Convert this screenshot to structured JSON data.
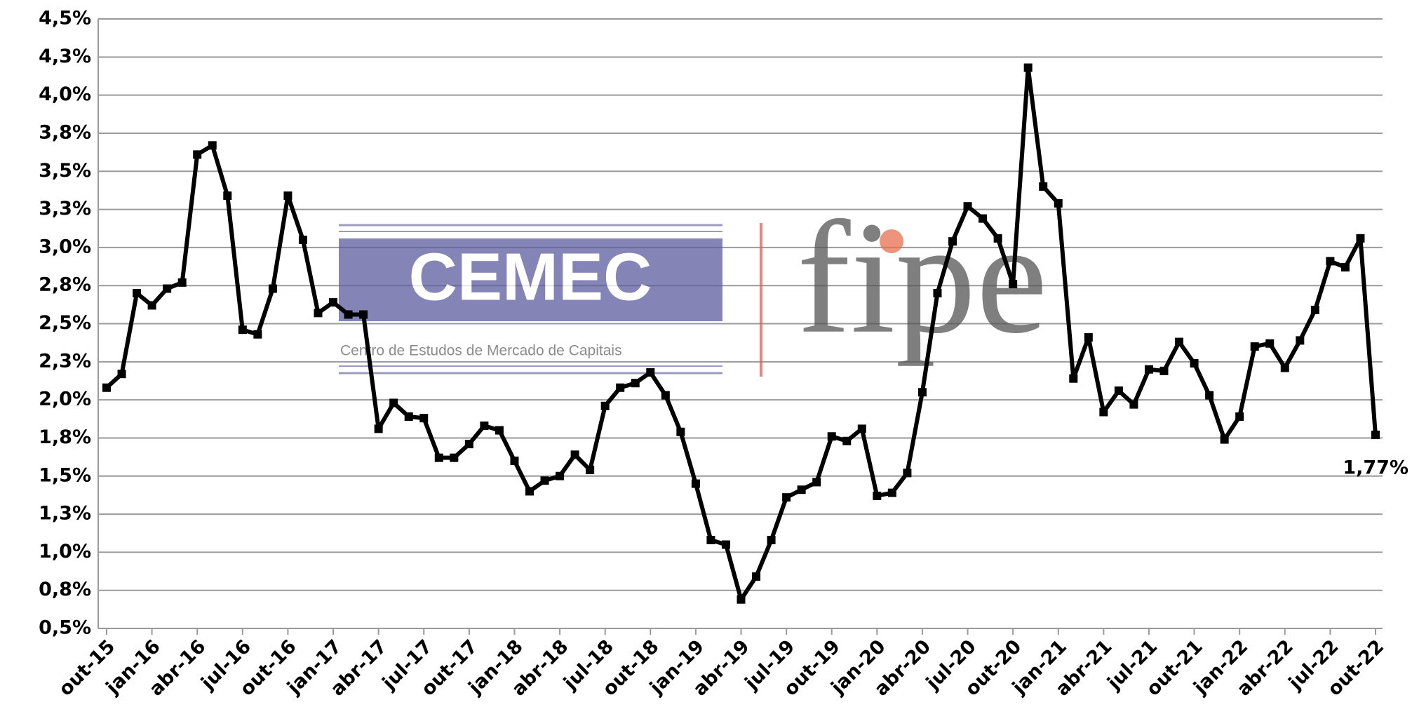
{
  "chart_data": {
    "type": "line",
    "color": "#000000",
    "grid": true,
    "categories": [
      "out-15",
      null,
      null,
      "jan-16",
      null,
      null,
      "abr-16",
      null,
      null,
      "jul-16",
      null,
      null,
      "out-16",
      null,
      null,
      "jan-17",
      null,
      null,
      "abr-17",
      null,
      null,
      "jul-17",
      null,
      null,
      "out-17",
      null,
      null,
      "jan-18",
      null,
      null,
      "abr-18",
      null,
      null,
      "jul-18",
      null,
      null,
      "out-18",
      null,
      null,
      "jan-19",
      null,
      null,
      "abr-19",
      null,
      null,
      "jul-19",
      null,
      null,
      "out-19",
      null,
      null,
      "jan-20",
      null,
      null,
      "abr-20",
      null,
      null,
      "jul-20",
      null,
      null,
      "out-20",
      null,
      null,
      "jan-21",
      null,
      null,
      "abr-21",
      null,
      null,
      "jul-21",
      null,
      null,
      "out-21",
      null,
      null,
      "jan-22",
      null,
      null,
      "abr-22",
      null,
      null,
      "jul-22",
      null,
      null,
      "out-22"
    ],
    "values": [
      2.08,
      2.17,
      2.7,
      2.62,
      2.73,
      2.77,
      3.61,
      3.67,
      3.34,
      2.46,
      2.43,
      2.73,
      3.34,
      3.05,
      2.57,
      2.64,
      2.56,
      2.56,
      1.81,
      1.98,
      1.89,
      1.88,
      1.62,
      1.62,
      1.71,
      1.83,
      1.8,
      1.6,
      1.4,
      1.47,
      1.5,
      1.64,
      1.54,
      1.96,
      2.08,
      2.11,
      2.18,
      2.03,
      1.79,
      1.45,
      1.08,
      1.05,
      0.69,
      0.84,
      1.08,
      1.36,
      1.41,
      1.46,
      1.76,
      1.73,
      1.81,
      1.37,
      1.39,
      1.52,
      2.05,
      2.7,
      3.04,
      3.27,
      3.19,
      3.06,
      2.76,
      4.18,
      3.4,
      3.29,
      2.14,
      2.41,
      1.92,
      2.06,
      1.97,
      2.2,
      2.19,
      2.38,
      2.24,
      2.03,
      1.74,
      1.89,
      2.35,
      2.37,
      2.21,
      2.39,
      2.59,
      2.91,
      2.87,
      3.06,
      1.77
    ],
    "value_labels": [
      null,
      null,
      null,
      null,
      null,
      null,
      null,
      null,
      null,
      null,
      null,
      null,
      null,
      null,
      null,
      null,
      null,
      null,
      null,
      null,
      null,
      null,
      null,
      null,
      null,
      null,
      null,
      null,
      null,
      null,
      null,
      null,
      null,
      null,
      null,
      null,
      null,
      null,
      null,
      null,
      null,
      null,
      null,
      null,
      null,
      null,
      null,
      null,
      null,
      null,
      null,
      null,
      null,
      null,
      null,
      null,
      null,
      null,
      null,
      null,
      null,
      null,
      null,
      null,
      null,
      null,
      null,
      null,
      null,
      null,
      null,
      null,
      null,
      null,
      null,
      null,
      null,
      null,
      null,
      null,
      null,
      null,
      null,
      null,
      "1,77%"
    ],
    "ylim": [
      0.5,
      4.5
    ],
    "yticks": [
      {
        "value": 0.5,
        "label": "0,5%"
      },
      {
        "value": 0.75,
        "label": "0,8%"
      },
      {
        "value": 1.0,
        "label": "1,0%"
      },
      {
        "value": 1.25,
        "label": "1,3%"
      },
      {
        "value": 1.5,
        "label": "1,5%"
      },
      {
        "value": 1.75,
        "label": "1,8%"
      },
      {
        "value": 2.0,
        "label": "2,0%"
      },
      {
        "value": 2.25,
        "label": "2,3%"
      },
      {
        "value": 2.5,
        "label": "2,5%"
      },
      {
        "value": 2.75,
        "label": "2,8%"
      },
      {
        "value": 3.0,
        "label": "3,0%"
      },
      {
        "value": 3.25,
        "label": "3,3%"
      },
      {
        "value": 3.5,
        "label": "3,5%"
      },
      {
        "value": 3.75,
        "label": "3,8%"
      },
      {
        "value": 4.0,
        "label": "4,0%"
      },
      {
        "value": 4.25,
        "label": "4,3%"
      },
      {
        "value": 4.5,
        "label": "4,5%"
      }
    ]
  },
  "logo": {
    "name": "CEMEC",
    "subtitle": "Centro de Estudos de Mercado de Capitais",
    "partner": "fipe"
  }
}
